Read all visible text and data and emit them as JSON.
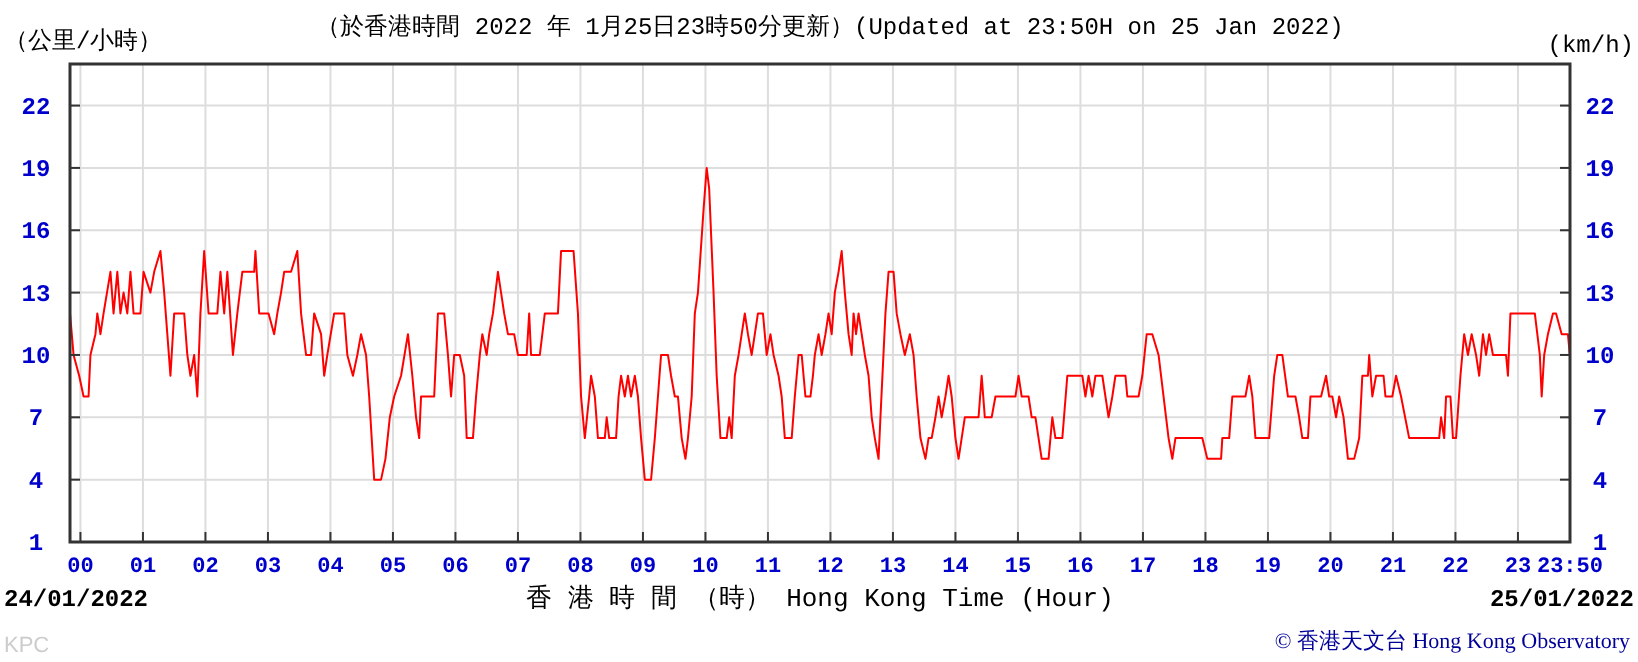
{
  "chart_data": {
    "type": "line",
    "title": "（於香港時間 2022 年 1月25日23時50分更新）(Updated at 23:50H on 25 Jan 2022)",
    "ylabel": "（公里/小時）",
    "y2label": "(km/h)",
    "xlabel": "香 港 時 間 （時） Hong Kong Time (Hour)",
    "annotations": [
      "24/01/2022",
      "25/01/2022",
      "KPC",
      "© 香港天文台 Hong Kong Observatory"
    ],
    "x": [
      -0.167,
      -0.11,
      -0.02,
      0.05,
      0.13,
      0.16,
      0.24,
      0.27,
      0.32,
      0.37,
      0.48,
      0.53,
      0.59,
      0.64,
      0.69,
      0.75,
      0.8,
      0.85,
      0.96,
      1.01,
      1.12,
      1.18,
      1.28,
      1.34,
      1.39,
      1.44,
      1.5,
      1.66,
      1.71,
      1.76,
      1.82,
      1.87,
      1.92,
      1.98,
      2.05,
      2.19,
      2.24,
      2.3,
      2.35,
      2.44,
      2.51,
      2.59,
      2.78,
      2.8,
      2.86,
      3.01,
      3.1,
      3.15,
      3.21,
      3.26,
      3.37,
      3.47,
      3.53,
      3.61,
      3.69,
      3.74,
      3.85,
      3.9,
      3.95,
      4.06,
      4.22,
      4.27,
      4.36,
      4.43,
      4.49,
      4.57,
      4.62,
      4.66,
      4.7,
      4.81,
      4.88,
      4.95,
      5.02,
      5.13,
      5.24,
      5.31,
      5.37,
      5.42,
      5.45,
      5.66,
      5.72,
      5.82,
      5.88,
      5.93,
      5.98,
      6.07,
      6.14,
      6.18,
      6.28,
      6.33,
      6.39,
      6.43,
      6.5,
      6.54,
      6.6,
      6.68,
      6.73,
      6.78,
      6.84,
      6.94,
      7.0,
      7.14,
      7.18,
      7.21,
      7.35,
      7.43,
      7.64,
      7.69,
      7.89,
      7.96,
      8.01,
      8.07,
      8.14,
      8.17,
      8.23,
      8.28,
      8.39,
      8.42,
      8.46,
      8.57,
      8.61,
      8.65,
      8.71,
      8.76,
      8.81,
      8.87,
      8.92,
      8.97,
      9.03,
      9.13,
      9.19,
      9.24,
      9.29,
      9.4,
      9.45,
      9.51,
      9.56,
      9.62,
      9.68,
      9.72,
      9.78,
      9.83,
      9.88,
      9.97,
      10.02,
      10.06,
      10.13,
      10.18,
      10.24,
      10.34,
      10.38,
      10.42,
      10.47,
      10.53,
      10.58,
      10.63,
      10.68,
      10.74,
      10.79,
      10.84,
      10.92,
      10.98,
      11.04,
      11.09,
      11.17,
      11.22,
      11.27,
      11.38,
      11.43,
      11.49,
      11.54,
      11.6,
      11.68,
      11.72,
      11.75,
      11.81,
      11.86,
      11.92,
      11.97,
      12.02,
      12.07,
      12.13,
      12.18,
      12.23,
      12.29,
      12.34,
      12.37,
      12.41,
      12.45,
      12.5,
      12.55,
      12.61,
      12.66,
      12.71,
      12.77,
      12.8,
      12.88,
      12.93,
      13.01,
      13.06,
      13.12,
      13.19,
      13.27,
      13.33,
      13.38,
      13.44,
      13.52,
      13.57,
      13.62,
      13.68,
      13.73,
      13.78,
      13.84,
      13.89,
      13.94,
      14.0,
      14.05,
      14.1,
      14.15,
      14.37,
      14.42,
      14.47,
      14.58,
      14.64,
      14.96,
      15.01,
      15.06,
      15.17,
      15.22,
      15.28,
      15.33,
      15.38,
      15.49,
      15.55,
      15.6,
      15.71,
      15.79,
      16.03,
      16.08,
      16.13,
      16.19,
      16.24,
      16.35,
      16.4,
      16.45,
      16.51,
      16.56,
      16.72,
      16.75,
      16.93,
      16.99,
      17.06,
      17.15,
      17.25,
      17.33,
      17.41,
      17.47,
      17.52,
      17.68,
      17.95,
      18.03,
      18.25,
      18.27,
      18.38,
      18.43,
      18.64,
      18.7,
      18.75,
      18.8,
      19.02,
      19.1,
      19.15,
      19.23,
      19.32,
      19.44,
      19.5,
      19.55,
      19.64,
      19.68,
      19.85,
      19.93,
      19.98,
      20.03,
      20.09,
      20.14,
      20.21,
      20.28,
      20.38,
      20.46,
      20.51,
      20.6,
      20.62,
      20.67,
      20.73,
      20.85,
      20.88,
      20.99,
      21.05,
      21.13,
      21.26,
      21.74,
      21.77,
      21.82,
      21.85,
      21.92,
      21.96,
      22.01,
      22.08,
      22.14,
      22.2,
      22.26,
      22.33,
      22.38,
      22.44,
      22.49,
      22.54,
      22.6,
      22.81,
      22.84,
      22.88,
      23.27,
      23.35,
      23.38,
      23.42,
      23.48,
      23.56,
      23.61,
      23.7,
      23.8,
      23.83
    ],
    "series": [
      {
        "color": "#ff0000",
        "values": [
          12,
          10,
          9,
          8,
          8,
          10,
          11,
          12,
          11,
          12,
          14,
          12,
          14,
          12,
          13,
          12,
          14,
          12,
          12,
          14,
          13,
          14,
          15,
          13,
          11,
          9,
          12,
          12,
          10,
          9,
          10,
          8,
          12,
          15,
          12,
          12,
          14,
          12,
          14,
          10,
          12,
          14,
          14,
          15,
          12,
          12,
          11,
          12,
          13,
          14,
          14,
          15,
          12,
          10,
          10,
          12,
          11,
          9,
          10,
          12,
          12,
          10,
          9,
          10,
          11,
          10,
          8,
          6,
          4,
          4,
          5,
          7,
          8,
          9,
          11,
          9,
          7,
          6,
          8,
          8,
          12,
          12,
          10,
          8,
          10,
          10,
          9,
          6,
          6,
          8,
          10,
          11,
          10,
          11,
          12,
          14,
          13,
          12,
          11,
          11,
          10,
          10,
          12,
          10,
          10,
          12,
          12,
          15,
          15,
          12,
          8,
          6,
          8,
          9,
          8,
          6,
          6,
          7,
          6,
          6,
          8,
          9,
          8,
          9,
          8,
          9,
          8,
          6,
          4,
          4,
          6,
          8,
          10,
          10,
          9,
          8,
          8,
          6,
          5,
          6,
          8,
          12,
          13,
          17,
          19,
          18,
          13,
          9,
          6,
          6,
          7,
          6,
          9,
          10,
          11,
          12,
          11,
          10,
          11,
          12,
          12,
          10,
          11,
          10,
          9,
          8,
          6,
          6,
          8,
          10,
          10,
          8,
          8,
          9,
          10,
          11,
          10,
          11,
          12,
          11,
          13,
          14,
          15,
          13,
          11,
          10,
          12,
          11,
          12,
          11,
          10,
          9,
          7,
          6,
          5,
          7,
          12,
          14,
          14,
          12,
          11,
          10,
          11,
          10,
          8,
          6,
          5,
          6,
          6,
          7,
          8,
          7,
          8,
          9,
          8,
          6,
          5,
          6,
          7,
          7,
          9,
          7,
          7,
          8,
          8,
          9,
          8,
          8,
          7,
          7,
          6,
          5,
          5,
          7,
          6,
          6,
          9,
          9,
          8,
          9,
          8,
          9,
          9,
          8,
          7,
          8,
          9,
          9,
          8,
          8,
          9,
          11,
          11,
          10,
          8,
          6,
          5,
          6,
          6,
          6,
          5,
          5,
          6,
          6,
          8,
          8,
          9,
          8,
          6,
          6,
          9,
          10,
          10,
          8,
          8,
          7,
          6,
          6,
          8,
          8,
          9,
          8,
          8,
          7,
          8,
          7,
          5,
          5,
          6,
          9,
          9,
          10,
          8,
          9,
          9,
          8,
          8,
          9,
          8,
          6,
          6,
          7,
          6,
          8,
          8,
          6,
          6,
          9,
          11,
          10,
          11,
          10,
          9,
          11,
          10,
          11,
          10,
          10,
          9,
          12,
          12,
          10,
          8,
          10,
          11,
          12,
          12,
          11,
          11,
          10
        ]
      }
    ],
    "xlim": [
      -0.167,
      23.833
    ],
    "xticks": [
      {
        "value": 0,
        "label": "00"
      },
      {
        "value": 1,
        "label": "01"
      },
      {
        "value": 2,
        "label": "02"
      },
      {
        "value": 3,
        "label": "03"
      },
      {
        "value": 4,
        "label": "04"
      },
      {
        "value": 5,
        "label": "05"
      },
      {
        "value": 6,
        "label": "06"
      },
      {
        "value": 7,
        "label": "07"
      },
      {
        "value": 8,
        "label": "08"
      },
      {
        "value": 9,
        "label": "09"
      },
      {
        "value": 10,
        "label": "10"
      },
      {
        "value": 11,
        "label": "11"
      },
      {
        "value": 12,
        "label": "12"
      },
      {
        "value": 13,
        "label": "13"
      },
      {
        "value": 14,
        "label": "14"
      },
      {
        "value": 15,
        "label": "15"
      },
      {
        "value": 16,
        "label": "16"
      },
      {
        "value": 17,
        "label": "17"
      },
      {
        "value": 18,
        "label": "18"
      },
      {
        "value": 19,
        "label": "19"
      },
      {
        "value": 20,
        "label": "20"
      },
      {
        "value": 21,
        "label": "21"
      },
      {
        "value": 22,
        "label": "22"
      },
      {
        "value": 23,
        "label": "23"
      },
      {
        "value": 23.833,
        "label": "23:50"
      }
    ],
    "ylim": [
      1,
      24
    ],
    "yticks": [
      1,
      4,
      7,
      10,
      13,
      16,
      19,
      22
    ],
    "y2lim": [
      1,
      24
    ],
    "y2ticks": [
      1,
      4,
      7,
      10,
      13,
      16,
      19,
      22
    ],
    "grid": true
  }
}
